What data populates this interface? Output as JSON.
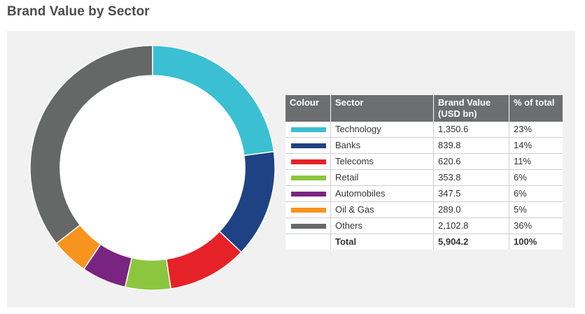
{
  "title": "Brand Value by Sector",
  "table": {
    "headers": [
      "Colour",
      "Sector",
      "Brand Value (USD bn)",
      "% of total"
    ],
    "total": {
      "label": "Total",
      "value": "5,904.2",
      "pct": "100%"
    }
  },
  "chart_data": {
    "type": "pie",
    "donut": true,
    "title": "Brand Value by Sector",
    "categories": [
      "Technology",
      "Banks",
      "Telecoms",
      "Retail",
      "Automobiles",
      "Oil & Gas",
      "Others"
    ],
    "values": [
      1350.6,
      839.8,
      620.6,
      353.8,
      347.5,
      289.0,
      2102.8
    ],
    "value_labels": [
      "1,350.6",
      "839.8",
      "620.6",
      "353.8",
      "347.5",
      "289.0",
      "2,102.8"
    ],
    "percent_labels": [
      "23%",
      "14%",
      "11%",
      "6%",
      "6%",
      "5%",
      "36%"
    ],
    "colors": [
      "#3bbfd3",
      "#1f4284",
      "#e62229",
      "#8cc63f",
      "#7a2481",
      "#f7941d",
      "#666767"
    ],
    "unit": "USD bn",
    "total": 5904.2
  }
}
